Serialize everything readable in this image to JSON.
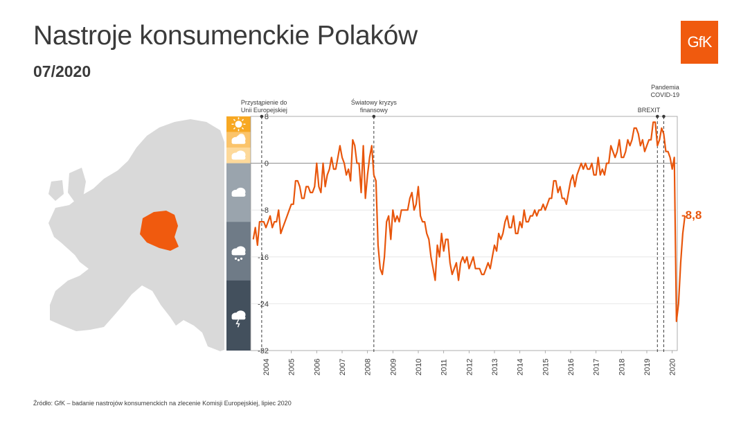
{
  "title": "Nastroje konsumenckie Polaków",
  "subtitle": "07/2020",
  "logo_text": "GfK",
  "source": "Źródło: GfK – badanie nastrojów konsumenckich na zlecenie Komisji Europejskiej, lipiec 2020",
  "colors": {
    "accent": "#e8560c",
    "map_poland": "#f05a0e",
    "map_europe": "#d9d9d9",
    "scale_sun": "#f7a823",
    "scale_partly": "#fbc46a",
    "scale_cloud": "#fdd99a",
    "scale_gray1": "#9aa4ad",
    "scale_gray2": "#6f7b87",
    "scale_dark": "#43505d"
  },
  "scale_icons": [
    "sun-icon",
    "sun-cloud-icon",
    "cloud-icon",
    "cloud-icon",
    "hail-cloud-icon",
    "storm-cloud-icon"
  ],
  "chart_data": {
    "type": "line",
    "ylim": [
      -32,
      8
    ],
    "yticks": [
      "8",
      "0",
      "-8",
      "-16",
      "-24",
      "-32"
    ],
    "yticks_values": [
      8,
      0,
      -8,
      -16,
      -24,
      -32
    ],
    "xlim": [
      "2004-01",
      "2020-07"
    ],
    "xticks": [
      "2004",
      "2005",
      "2006",
      "2007",
      "2008",
      "2009",
      "2010",
      "2011",
      "2012",
      "2013",
      "2014",
      "2015",
      "2016",
      "2017",
      "2018",
      "2019",
      "2020"
    ],
    "end_label": "-8,8",
    "events": [
      {
        "label": [
          "Przystąpienie do",
          "Unii Europejskiej"
        ],
        "date": "2004-05"
      },
      {
        "label": [
          "Światowy kryzys",
          "finansowy"
        ],
        "date": "2008-10"
      },
      {
        "label": [
          "BREXIT"
        ],
        "date": "2019-12"
      },
      {
        "label": [
          "Pandemia",
          "COVID-19"
        ],
        "date": "2020-03"
      }
    ],
    "series": [
      {
        "start": "2004-01",
        "values": [
          -13,
          -11,
          -14,
          -10,
          -10,
          -10,
          -11,
          -10,
          -9,
          -11,
          -10,
          -10,
          -8,
          -12,
          -11,
          -10,
          -9,
          -8,
          -7,
          -7,
          -3,
          -3,
          -4,
          -6,
          -6,
          -4,
          -4,
          -5,
          -5,
          -4,
          0,
          -4,
          -5,
          0,
          -4,
          -2,
          -1,
          1,
          -1,
          -1,
          1,
          3,
          1,
          0,
          -2,
          -1,
          -3,
          4,
          3,
          0,
          0,
          -5,
          3,
          -6,
          -2,
          1,
          3,
          -2,
          -3,
          -14,
          -18,
          -19,
          -16,
          -10,
          -9,
          -13,
          -8,
          -10,
          -9,
          -10,
          -8,
          -8,
          -8,
          -8,
          -6,
          -5,
          -8,
          -7,
          -4,
          -9,
          -10,
          -10,
          -12,
          -13,
          -16,
          -18,
          -20,
          -14,
          -16,
          -12,
          -15,
          -13,
          -13,
          -17,
          -19,
          -18,
          -17,
          -20,
          -17,
          -16,
          -17,
          -16,
          -18,
          -17,
          -16,
          -18,
          -18,
          -18,
          -19,
          -19,
          -18,
          -17,
          -18,
          -16,
          -14,
          -15,
          -12,
          -13,
          -12,
          -10,
          -9,
          -11,
          -11,
          -9,
          -12,
          -12,
          -10,
          -11,
          -8,
          -10,
          -10,
          -9,
          -9,
          -8,
          -9,
          -8,
          -8,
          -7,
          -8,
          -7,
          -6,
          -6,
          -3,
          -3,
          -5,
          -4,
          -6,
          -6,
          -7,
          -5,
          -3,
          -2,
          -4,
          -2,
          -1,
          0,
          -1,
          0,
          -1,
          -1,
          0,
          -2,
          -2,
          1,
          -2,
          -1,
          -2,
          0,
          0,
          3,
          2,
          1,
          2,
          4,
          1,
          1,
          2,
          4,
          3,
          4,
          6,
          6,
          5,
          3,
          4,
          2,
          3,
          4,
          4,
          7,
          7,
          3,
          4,
          6,
          5,
          2,
          2,
          1,
          -1,
          1,
          -27,
          -24,
          -17,
          -12,
          -9
        ]
      }
    ]
  }
}
